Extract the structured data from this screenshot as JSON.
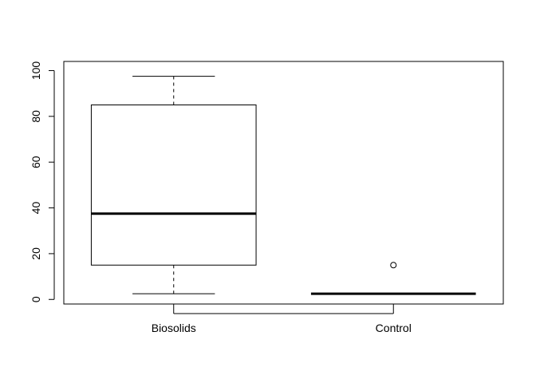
{
  "chart_data": {
    "type": "boxplot",
    "title": "",
    "xlabel": "",
    "ylabel": "",
    "ylim": [
      -2,
      104
    ],
    "y_ticks": [
      0,
      20,
      40,
      60,
      80,
      100
    ],
    "grid": false,
    "categories": [
      "Biosolids",
      "Control"
    ],
    "boxes": [
      {
        "label": "Biosolids",
        "whisker_low": 2.5,
        "q1": 15,
        "median": 37.5,
        "q3": 85,
        "whisker_high": 97.5,
        "outliers": []
      },
      {
        "label": "Control",
        "whisker_low": 2.5,
        "q1": 2.5,
        "median": 2.5,
        "q3": 2.5,
        "whisker_high": 2.5,
        "outliers": [
          15
        ]
      }
    ]
  }
}
